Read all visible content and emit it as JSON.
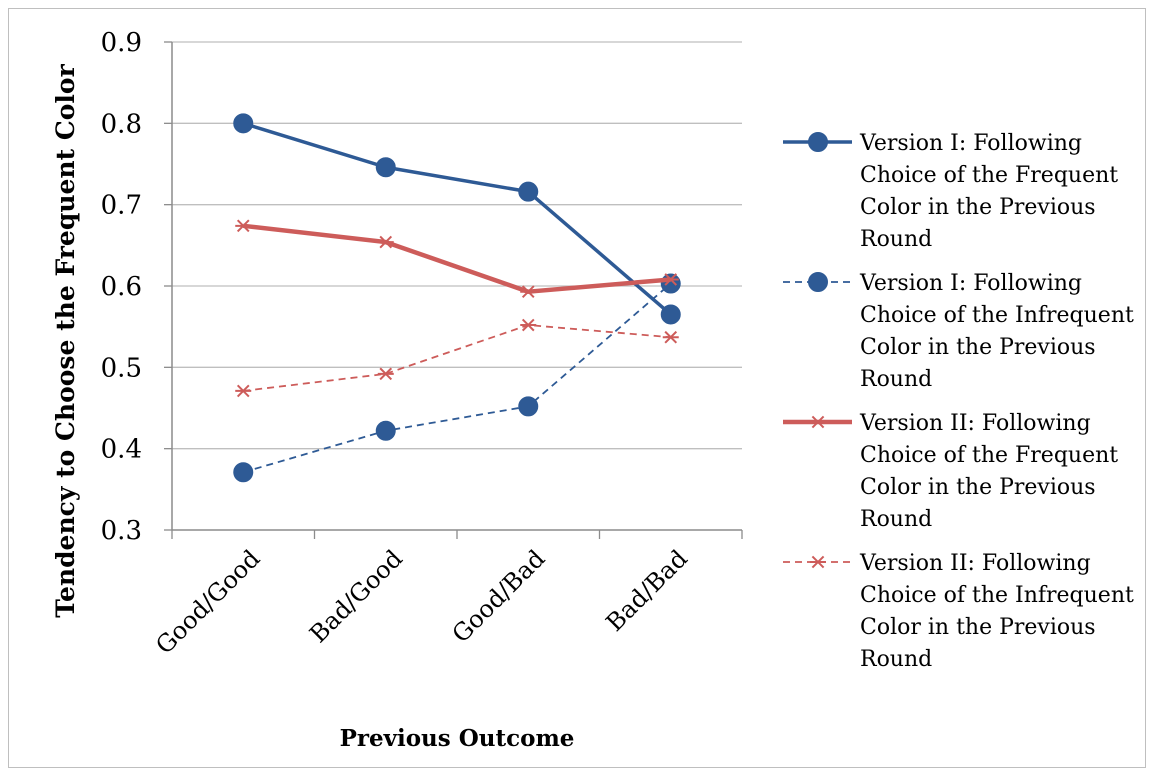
{
  "chart_data": {
    "type": "line",
    "title": "",
    "xlabel": "Previous Outcome",
    "ylabel": "Tendency to Choose the Frequent Color",
    "ylim": [
      0.3,
      0.9
    ],
    "y_ticks": [
      "0.3",
      "0.4",
      "0.5",
      "0.6",
      "0.7",
      "0.8",
      "0.9"
    ],
    "grid": "horizontal",
    "legend_position": "right",
    "categories": [
      "Good/Good",
      "Bad/Good",
      "Good/Bad",
      "Bad/Bad"
    ],
    "series": [
      {
        "name": "Version I: Following Choice of the Frequent Color in the Previous Round",
        "legend_lines": [
          "Version I: Following",
          "Choice of the Frequent",
          "Color in the Previous",
          "Round"
        ],
        "values": [
          0.8,
          0.746,
          0.716,
          0.565
        ],
        "color": "#2e5a95",
        "dash": "solid",
        "marker": "circle"
      },
      {
        "name": "Version I: Following Choice of the Infrequent Color in the Previous Round",
        "legend_lines": [
          "Version I: Following",
          "Choice of the Infrequent",
          "Color in the Previous",
          "Round"
        ],
        "values": [
          0.371,
          0.422,
          0.452,
          0.603
        ],
        "color": "#2e5a95",
        "dash": "dashed",
        "marker": "circle"
      },
      {
        "name": "Version II: Following Choice of the Frequent Color in the Previous Round",
        "legend_lines": [
          "Version II: Following",
          "Choice of the Frequent",
          "Color in the Previous",
          "Round"
        ],
        "values": [
          0.674,
          0.654,
          0.593,
          0.608
        ],
        "color": "#cd5c5a",
        "dash": "solid",
        "marker": "asterisk"
      },
      {
        "name": "Version II: Following Choice of the Infrequent Color in the Previous Round",
        "legend_lines": [
          "Version II: Following",
          "Choice of the Infrequent",
          "Color in the Previous",
          "Round"
        ],
        "values": [
          0.471,
          0.492,
          0.552,
          0.537
        ],
        "color": "#cd5c5a",
        "dash": "dashed",
        "marker": "asterisk"
      }
    ]
  }
}
